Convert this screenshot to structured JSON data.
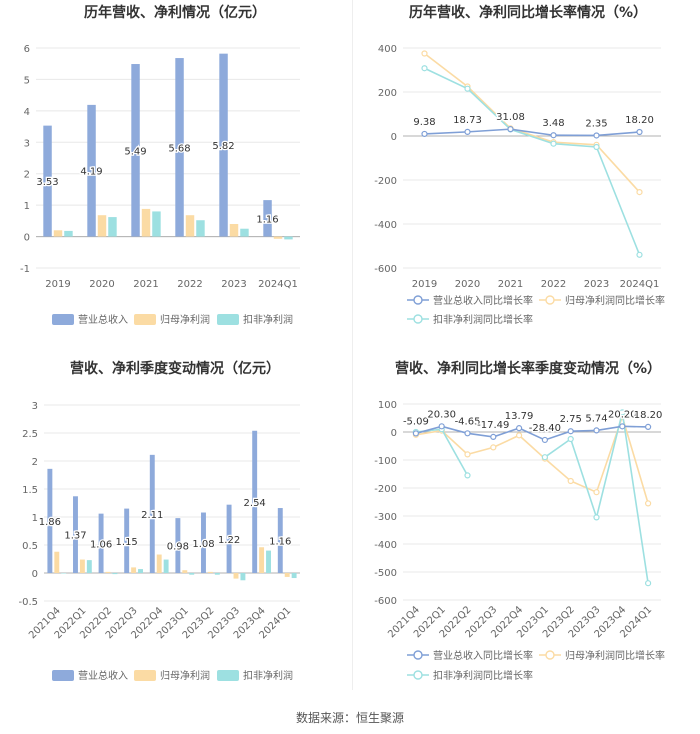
{
  "source": "数据来源：恒生聚源",
  "colors": {
    "revenue": "#8eaadb",
    "netprofit": "#fbdba4",
    "deducted": "#9de0e1",
    "grid": "#e8e8e8",
    "axis": "#999999",
    "text": "#333333",
    "label": "#666666"
  },
  "chart_data": [
    {
      "type": "bar",
      "title": "历年营收、净利情况（亿元）",
      "categories": [
        "2019",
        "2020",
        "2021",
        "2022",
        "2023",
        "2024Q1"
      ],
      "ylim": [
        -1,
        6
      ],
      "yticks": [
        -1,
        0,
        1,
        2,
        3,
        4,
        5,
        6
      ],
      "series": [
        {
          "name": "营业总收入",
          "color_key": "revenue",
          "values": [
            3.53,
            4.19,
            5.49,
            5.68,
            5.82,
            1.16
          ],
          "labels": [
            "3.53",
            "4.19",
            "5.49",
            "5.68",
            "5.82",
            "1.16"
          ]
        },
        {
          "name": "归母净利润",
          "color_key": "netprofit",
          "values": [
            0.2,
            0.68,
            0.88,
            0.68,
            0.4,
            -0.07
          ]
        },
        {
          "name": "扣非净利润",
          "color_key": "deducted",
          "values": [
            0.18,
            0.62,
            0.8,
            0.52,
            0.25,
            -0.09
          ]
        }
      ]
    },
    {
      "type": "line",
      "title": "历年营收、净利同比增长率情况（%）",
      "categories": [
        "2019",
        "2020",
        "2021",
        "2022",
        "2023",
        "2024Q1"
      ],
      "ylim": [
        -600,
        400
      ],
      "yticks": [
        -600,
        -400,
        -200,
        0,
        200,
        400
      ],
      "series": [
        {
          "name": "营业总收入同比增长率",
          "color_key": "revenue",
          "values": [
            9.38,
            18.73,
            31.08,
            3.48,
            2.35,
            18.2
          ],
          "labels": [
            "9.38",
            "18.73",
            "31.08",
            "3.48",
            "2.35",
            "18.20"
          ]
        },
        {
          "name": "归母净利润同比增长率",
          "color_key": "netprofit",
          "values": [
            375,
            225,
            35,
            -28,
            -40,
            -255
          ]
        },
        {
          "name": "扣非净利润同比增长率",
          "color_key": "deducted",
          "values": [
            308,
            215,
            30,
            -35,
            -50,
            -540
          ]
        }
      ]
    },
    {
      "type": "bar",
      "title": "营收、净利季度变动情况（亿元）",
      "categories": [
        "2021Q4",
        "2022Q1",
        "2022Q2",
        "2022Q3",
        "2022Q4",
        "2023Q1",
        "2023Q2",
        "2023Q3",
        "2023Q4",
        "2024Q1"
      ],
      "ylim": [
        -0.5,
        3
      ],
      "yticks": [
        -0.5,
        0,
        0.5,
        1,
        1.5,
        2,
        2.5,
        3
      ],
      "series": [
        {
          "name": "营业总收入",
          "color_key": "revenue",
          "values": [
            1.86,
            1.37,
            1.06,
            1.15,
            2.11,
            0.98,
            1.08,
            1.22,
            2.54,
            1.16
          ],
          "labels": [
            "1.86",
            "1.37",
            "1.06",
            "1.15",
            "2.11",
            "0.98",
            "1.08",
            "1.22",
            "2.54",
            "1.16"
          ]
        },
        {
          "name": "归母净利润",
          "color_key": "netprofit",
          "values": [
            0.38,
            0.24,
            0.02,
            0.1,
            0.33,
            0.05,
            0.02,
            -0.1,
            0.46,
            -0.07
          ]
        },
        {
          "name": "扣非净利润",
          "color_key": "deducted",
          "values": [
            0.0,
            0.23,
            -0.02,
            0.07,
            0.24,
            -0.03,
            -0.03,
            -0.13,
            0.4,
            -0.09
          ]
        }
      ]
    },
    {
      "type": "line",
      "title": "营收、净利同比增长率季度变动情况（%）",
      "categories": [
        "2021Q4",
        "2022Q1",
        "2022Q2",
        "2022Q3",
        "2022Q4",
        "2023Q1",
        "2023Q2",
        "2023Q3",
        "2023Q4",
        "2024Q1"
      ],
      "ylim": [
        -600,
        100
      ],
      "yticks": [
        -600,
        -500,
        -400,
        -300,
        -200,
        -100,
        0,
        100
      ],
      "series": [
        {
          "name": "营业总收入同比增长率",
          "color_key": "revenue",
          "values": [
            -5.09,
            20.3,
            -4.65,
            -17.49,
            13.79,
            -28.4,
            2.75,
            5.74,
            20.2,
            18.2
          ],
          "labels": [
            "-5.09",
            "20.30",
            "-4.65",
            "-17.49",
            "13.79",
            "-28.40",
            "2.75",
            "5.74",
            "20.20",
            "18.20"
          ]
        },
        {
          "name": "归母净利润同比增长率",
          "color_key": "netprofit",
          "values": [
            -10,
            5,
            -80,
            -55,
            -12,
            -95,
            -175,
            -215,
            55,
            -255
          ]
        },
        {
          "name": "扣非净利润同比增长率",
          "color_key": "deducted",
          "values": [
            0,
            10,
            -155,
            null,
            null,
            -90,
            -25,
            -305,
            70,
            -540
          ]
        }
      ]
    }
  ]
}
